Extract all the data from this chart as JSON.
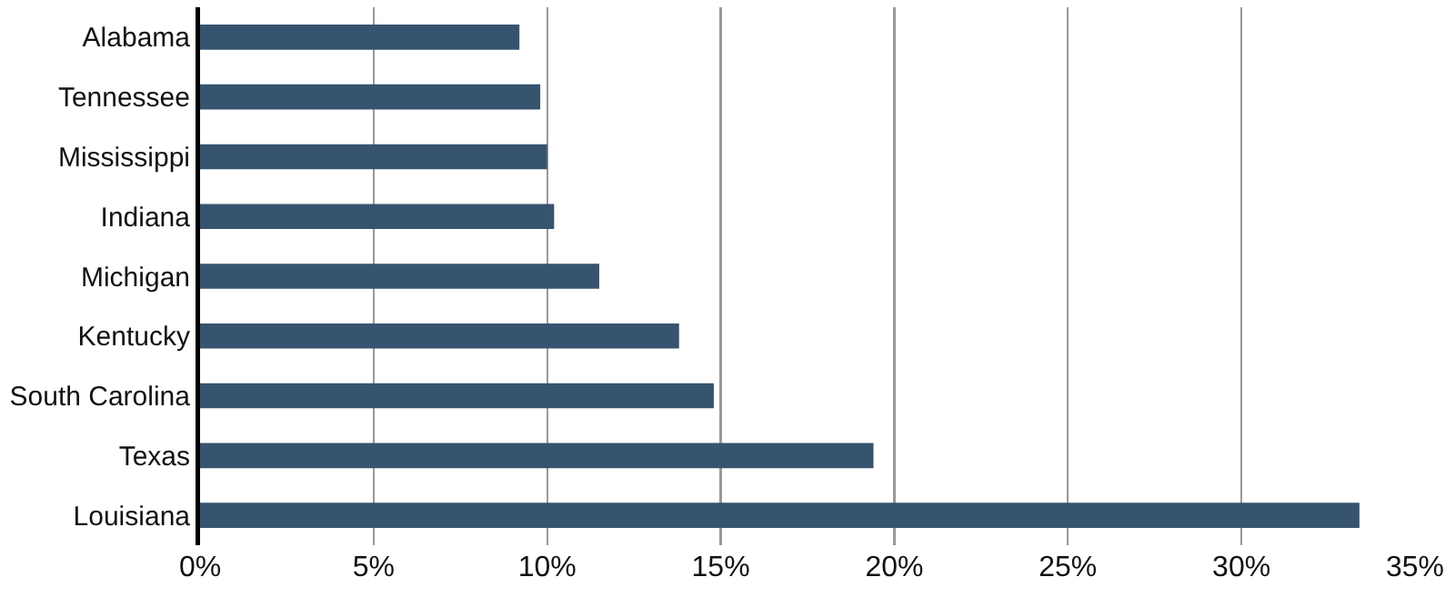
{
  "chart_data": {
    "type": "bar",
    "orientation": "horizontal",
    "categories": [
      "Alabama",
      "Tennessee",
      "Mississippi",
      "Indiana",
      "Michigan",
      "Kentucky",
      "South Carolina",
      "Texas",
      "Louisiana"
    ],
    "values": [
      9.2,
      9.8,
      10.0,
      10.2,
      11.5,
      13.8,
      14.8,
      19.4,
      33.4
    ],
    "color": "#36546f",
    "xlim": [
      0,
      35
    ],
    "xticks": [
      {
        "value": 0,
        "label": "0%"
      },
      {
        "value": 5,
        "label": "5%"
      },
      {
        "value": 10,
        "label": "10%"
      },
      {
        "value": 15,
        "label": "15%"
      },
      {
        "value": 20,
        "label": "20%"
      },
      {
        "value": 25,
        "label": "25%"
      },
      {
        "value": 30,
        "label": "30%"
      },
      {
        "value": 35,
        "label": "35%"
      }
    ],
    "grid": "x",
    "legend": false
  }
}
